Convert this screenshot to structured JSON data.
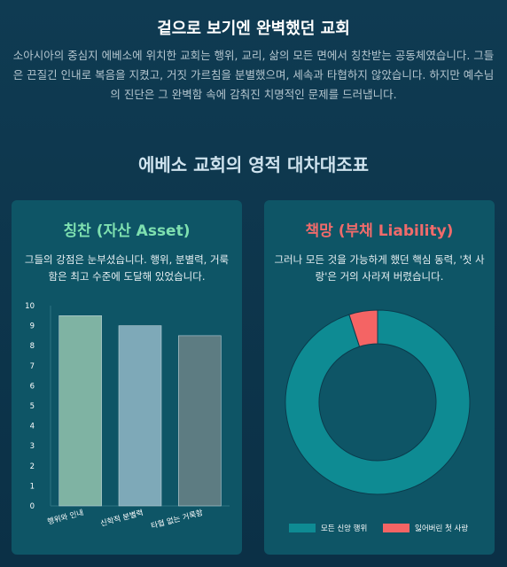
{
  "hero": {
    "title": "겉으로 보기엔 완벽했던 교회",
    "description": "소아시아의 중심지 에베소에 위치한 교회는 행위, 교리, 삶의 모든 면에서 칭찬받는 공동체였습니다. 그들은 끈질긴 인내로 복음을 지켰고, 거짓 가르침을 분별했으며, 세속과 타협하지 않았습니다. 하지만 예수님의 진단은 그 완벽함 속에 감춰진 치명적인 문제를 드러냅니다."
  },
  "section_title": "에베소 교회의 영적 대차대조표",
  "asset_card": {
    "title": "칭찬 (자산 Asset)",
    "description": "그들의 강점은 눈부셨습니다. 행위, 분별력, 거룩함은 최고 수준에 도달해 있었습니다."
  },
  "liability_card": {
    "title": "책망 (부채 Liability)",
    "description": "그러나 모든 것을 가능하게 했던 핵심 동력, '첫 사랑'은 거의 사라져 버렸습니다."
  },
  "colors": {
    "accent_green": "#7ee0b0",
    "accent_red": "#f06b6b",
    "donut_main": "#0e8b93",
    "donut_lost": "#f46464"
  },
  "chart_data": [
    {
      "type": "bar",
      "categories": [
        "행위와 인내",
        "신학적 분별력",
        "타협 없는 거룩함"
      ],
      "values": [
        9.5,
        9,
        8.5
      ],
      "bar_colors": [
        "#7fb3a3",
        "#7ea9b8",
        "#5d7c82"
      ],
      "ylim": [
        0,
        10
      ],
      "yticks": [
        0,
        1,
        2,
        3,
        4,
        5,
        6,
        7,
        8,
        9,
        10
      ],
      "grid": false
    },
    {
      "type": "pie",
      "donut": true,
      "labels": [
        "모든 신앙 행위",
        "잃어버린 첫 사랑"
      ],
      "values": [
        95,
        5
      ],
      "colors": [
        "#0e8b93",
        "#f46464"
      ],
      "legend_position": "bottom"
    }
  ]
}
